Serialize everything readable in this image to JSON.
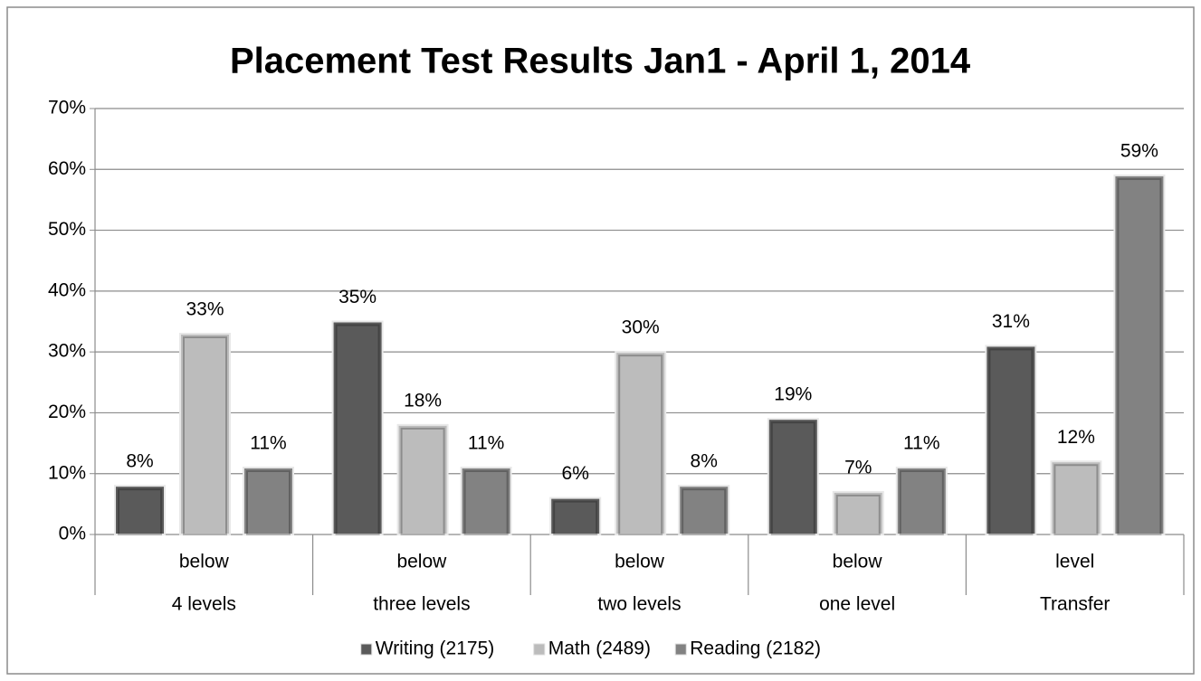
{
  "chart_data": {
    "type": "bar",
    "title": "Placement Test Results Jan1 - April 1, 2014",
    "categories": [
      [
        "below",
        "4 levels"
      ],
      [
        "below",
        "three levels"
      ],
      [
        "below",
        "two levels"
      ],
      [
        "below",
        "one level"
      ],
      [
        "level",
        "Transfer"
      ]
    ],
    "series": [
      {
        "name": "Writing (2175)",
        "color": "#5a5a5a",
        "values": [
          8,
          35,
          6,
          19,
          31
        ],
        "value_labels": [
          "8%",
          "35%",
          "6%",
          "19%",
          "31%"
        ]
      },
      {
        "name": "Math (2489)",
        "color": "#bcbcbc",
        "values": [
          33,
          18,
          30,
          7,
          12
        ],
        "value_labels": [
          "33%",
          "18%",
          "30%",
          "7%",
          "12%"
        ]
      },
      {
        "name": "Reading (2182)",
        "color": "#828282",
        "values": [
          11,
          11,
          8,
          11,
          59
        ],
        "value_labels": [
          "11%",
          "11%",
          "8%",
          "11%",
          "59%"
        ]
      }
    ],
    "ylim": [
      0,
      70
    ],
    "yticks": [
      {
        "value": 0,
        "label": "0%"
      },
      {
        "value": 10,
        "label": "10%"
      },
      {
        "value": 20,
        "label": "20%"
      },
      {
        "value": 30,
        "label": "30%"
      },
      {
        "value": 40,
        "label": "40%"
      },
      {
        "value": 50,
        "label": "50%"
      },
      {
        "value": 60,
        "label": "60%"
      },
      {
        "value": 70,
        "label": "70%"
      }
    ],
    "grid": true,
    "legend": "bottom"
  }
}
